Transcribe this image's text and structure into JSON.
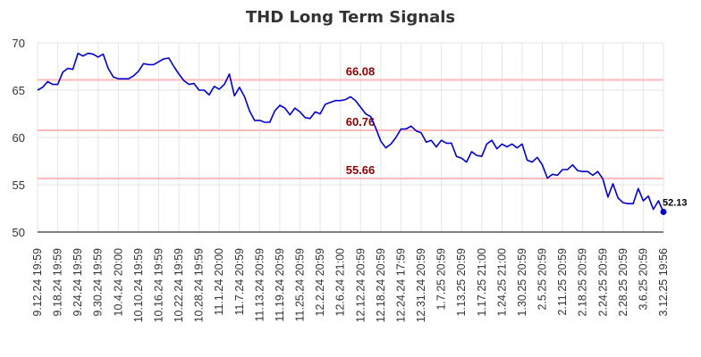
{
  "chart_data": {
    "type": "line",
    "title": "THD Long Term Signals",
    "xlabel": "",
    "ylabel": "",
    "ylim": [
      50,
      70
    ],
    "yticks": [
      50,
      55,
      60,
      65,
      70
    ],
    "grid": true,
    "line_color": "#0000cc",
    "level_color": "#ffbbbb",
    "level_text_color": "#8b0000",
    "xtick_labels": [
      "9.12.24 19:59",
      "9.18.24 19:59",
      "9.24.24 19:59",
      "9.30.24 19:59",
      "10.4.24 20:00",
      "10.10.24 19:59",
      "10.16.24 19:59",
      "10.22.24 19:59",
      "10.28.24 19:59",
      "11.1.24 20:00",
      "11.7.24 20:59",
      "11.13.24 20:59",
      "11.19.24 20:59",
      "11.25.24 20:59",
      "12.2.24 20:59",
      "12.6.24 21:00",
      "12.12.24 20:59",
      "12.18.24 20:59",
      "12.24.24 17:59",
      "12.31.24 20:59",
      "1.7.25 20:59",
      "1.13.25 20:59",
      "1.17.25 21:00",
      "1.24.25 21:00",
      "1.30.25 20:59",
      "2.5.25 20:59",
      "2.11.25 20:59",
      "2.18.25 20:59",
      "2.24.25 20:59",
      "2.28.25 20:59",
      "3.6.25 20:59",
      "3.12.25 19:56"
    ],
    "levels": [
      {
        "value": 66.08,
        "label": "66.08"
      },
      {
        "value": 60.76,
        "label": "60.76"
      },
      {
        "value": 55.66,
        "label": "55.66"
      }
    ],
    "last_value": {
      "value": 52.13,
      "label": "52.13"
    },
    "series": [
      {
        "values": [
          65.0,
          65.3,
          65.9,
          65.6,
          65.6,
          66.9,
          67.3,
          67.2,
          68.9,
          68.6,
          68.9,
          68.8,
          68.5,
          68.8,
          67.3,
          66.4,
          66.2,
          66.2,
          66.2,
          66.5,
          67.0,
          67.8,
          67.7,
          67.7,
          68.0,
          68.3,
          68.4,
          67.5,
          66.7,
          66.0,
          65.6,
          65.7,
          65.0,
          65.0,
          64.5,
          65.4,
          65.1,
          65.6,
          66.7,
          64.4,
          65.3,
          64.3,
          62.8,
          61.8,
          61.8,
          61.6,
          61.6,
          62.8,
          63.4,
          63.1,
          62.4,
          63.1,
          62.7,
          62.1,
          62.0,
          62.7,
          62.5,
          63.5,
          63.7,
          63.9,
          63.9,
          64.0,
          64.3,
          63.9,
          63.2,
          62.5,
          62.2,
          61.0,
          59.6,
          58.9,
          59.3,
          60.0,
          60.9,
          60.9,
          61.2,
          60.7,
          60.5,
          59.5,
          59.7,
          59.0,
          59.7,
          59.4,
          59.4,
          58.0,
          57.8,
          57.4,
          58.5,
          58.1,
          58.0,
          59.3,
          59.7,
          58.8,
          59.3,
          59.0,
          59.3,
          58.9,
          59.3,
          57.6,
          57.4,
          57.9,
          57.1,
          55.7,
          56.1,
          56.0,
          56.6,
          56.6,
          57.1,
          56.5,
          56.4,
          56.4,
          56.0,
          56.4,
          55.6,
          53.7,
          55.1,
          53.6,
          53.1,
          53.0,
          53.0,
          54.6,
          53.3,
          53.8,
          52.4,
          53.3,
          52.13
        ]
      }
    ]
  }
}
